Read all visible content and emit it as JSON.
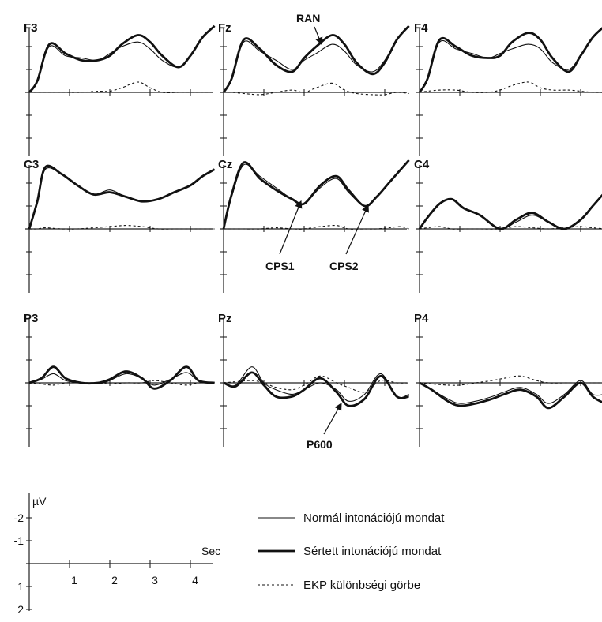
{
  "chart_data": {
    "type": "line",
    "x_unit": "Sec",
    "y_unit": "µV",
    "series_styles": [
      {
        "key": "normal",
        "style": "thin solid",
        "color": "#222222"
      },
      {
        "key": "violated",
        "style": "thick solid",
        "color": "#111111"
      },
      {
        "key": "difference",
        "style": "dashed",
        "color": "#222222"
      }
    ],
    "panels": [
      {
        "name": "F3",
        "x": [
          0,
          0.2,
          0.5,
          0.9,
          1.3,
          1.7,
          2.0,
          2.3,
          2.7,
          3.0,
          3.3,
          3.7,
          4.0,
          4.3,
          4.6
        ],
        "normal": [
          0,
          -0.5,
          -2.0,
          -1.6,
          -1.5,
          -1.4,
          -1.7,
          -2.0,
          -2.2,
          -1.9,
          -1.4,
          -1.1,
          -1.6,
          -2.4,
          -2.9
        ],
        "violated": [
          0,
          -0.5,
          -2.1,
          -1.7,
          -1.4,
          -1.4,
          -1.6,
          -2.1,
          -2.5,
          -2.2,
          -1.6,
          -1.1,
          -1.6,
          -2.4,
          -2.9
        ],
        "difference": [
          0,
          0,
          0,
          0,
          0,
          -0.05,
          -0.05,
          -0.2,
          -0.45,
          -0.2,
          0,
          0,
          0,
          0,
          0
        ]
      },
      {
        "name": "Fz",
        "x": [
          0,
          0.2,
          0.5,
          0.9,
          1.3,
          1.7,
          2.0,
          2.3,
          2.7,
          3.0,
          3.3,
          3.7,
          4.0,
          4.3,
          4.6
        ],
        "normal": [
          0,
          -0.6,
          -2.2,
          -1.8,
          -1.4,
          -1.0,
          -1.4,
          -1.7,
          -2.1,
          -1.8,
          -1.2,
          -0.9,
          -1.4,
          -2.3,
          -2.9
        ],
        "violated": [
          0,
          -0.6,
          -2.3,
          -1.9,
          -1.2,
          -0.9,
          -1.5,
          -2.0,
          -2.5,
          -2.1,
          -1.3,
          -0.8,
          -1.3,
          -2.3,
          -2.9
        ],
        "difference": [
          0,
          0,
          0.05,
          0.1,
          0,
          -0.1,
          0,
          -0.2,
          -0.4,
          -0.1,
          0.05,
          0.1,
          0.1,
          0,
          0.05
        ]
      },
      {
        "name": "F4",
        "x": [
          0,
          0.2,
          0.5,
          0.9,
          1.3,
          1.7,
          2.0,
          2.3,
          2.7,
          3.0,
          3.3,
          3.7,
          4.0,
          4.3,
          4.6
        ],
        "normal": [
          0,
          -0.6,
          -2.2,
          -1.9,
          -1.7,
          -1.5,
          -1.7,
          -1.9,
          -2.1,
          -1.9,
          -1.3,
          -1.0,
          -1.6,
          -2.4,
          -2.9
        ],
        "violated": [
          0,
          -0.6,
          -2.3,
          -2.0,
          -1.6,
          -1.5,
          -1.6,
          -2.2,
          -2.6,
          -2.3,
          -1.5,
          -0.9,
          -1.6,
          -2.4,
          -2.9
        ],
        "difference": [
          0,
          -0.05,
          -0.1,
          -0.1,
          0,
          0,
          -0.1,
          -0.3,
          -0.45,
          -0.2,
          -0.1,
          -0.1,
          -0.05,
          0,
          0
        ]
      },
      {
        "name": "C3",
        "x": [
          0,
          0.2,
          0.4,
          0.8,
          1.2,
          1.6,
          2.0,
          2.4,
          2.8,
          3.2,
          3.6,
          4.0,
          4.3,
          4.6
        ],
        "normal": [
          0,
          -1.2,
          -2.6,
          -2.4,
          -1.9,
          -1.5,
          -1.7,
          -1.4,
          -1.2,
          -1.3,
          -1.6,
          -1.9,
          -2.3,
          -2.6
        ],
        "violated": [
          0,
          -1.2,
          -2.7,
          -2.4,
          -1.9,
          -1.5,
          -1.6,
          -1.4,
          -1.2,
          -1.3,
          -1.6,
          -1.9,
          -2.3,
          -2.6
        ],
        "difference": [
          0,
          0,
          -0.05,
          0,
          0,
          -0.05,
          -0.1,
          -0.15,
          -0.1,
          0,
          0,
          0,
          0,
          0
        ]
      },
      {
        "name": "Cz",
        "x": [
          0,
          0.2,
          0.5,
          0.9,
          1.3,
          1.7,
          2.0,
          2.4,
          2.8,
          3.1,
          3.5,
          3.8,
          4.1,
          4.4,
          4.6
        ],
        "normal": [
          0,
          -1.4,
          -2.8,
          -2.3,
          -1.8,
          -1.3,
          -1.1,
          -1.8,
          -2.2,
          -1.6,
          -1.0,
          -1.4,
          -2.0,
          -2.6,
          -3.0
        ],
        "violated": [
          0,
          -1.5,
          -2.9,
          -2.2,
          -1.7,
          -1.3,
          -1.1,
          -1.9,
          -2.3,
          -1.7,
          -1.0,
          -1.4,
          -2.0,
          -2.6,
          -3.0
        ],
        "difference": [
          0,
          0,
          0,
          0,
          -0.05,
          0,
          0,
          -0.1,
          -0.15,
          0,
          0,
          0,
          -0.05,
          -0.1,
          0
        ]
      },
      {
        "name": "C4",
        "x": [
          0,
          0.2,
          0.5,
          0.8,
          1.1,
          1.5,
          2.0,
          2.4,
          2.8,
          3.2,
          3.6,
          4.0,
          4.3,
          4.6
        ],
        "normal": [
          0,
          -0.5,
          -1.1,
          -1.3,
          -0.9,
          -0.6,
          0.0,
          -0.3,
          -0.6,
          -0.3,
          0.0,
          -0.4,
          -1.0,
          -1.6
        ],
        "violated": [
          0,
          -0.5,
          -1.1,
          -1.3,
          -0.9,
          -0.6,
          0.0,
          -0.4,
          -0.7,
          -0.3,
          0.0,
          -0.4,
          -1.0,
          -1.6
        ],
        "difference": [
          0,
          -0.05,
          -0.1,
          0,
          0,
          0,
          0,
          -0.1,
          -0.05,
          0,
          -0.05,
          -0.1,
          -0.05,
          0
        ]
      },
      {
        "name": "P3",
        "x": [
          0,
          0.3,
          0.6,
          0.9,
          1.3,
          1.7,
          2.0,
          2.4,
          2.8,
          3.1,
          3.5,
          3.9,
          4.2,
          4.6
        ],
        "normal": [
          0,
          -0.15,
          -0.4,
          -0.1,
          0,
          0.05,
          -0.1,
          -0.4,
          -0.2,
          0.1,
          -0.15,
          -0.45,
          -0.1,
          0
        ],
        "violated": [
          0,
          -0.2,
          -0.7,
          -0.2,
          0,
          0,
          -0.15,
          -0.5,
          -0.2,
          0.25,
          -0.1,
          -0.7,
          -0.1,
          0
        ],
        "difference": [
          0,
          0.05,
          0.1,
          0,
          0,
          0,
          0.05,
          0,
          0,
          -0.1,
          0,
          0.1,
          0,
          0
        ]
      },
      {
        "name": "Pz",
        "x": [
          0,
          0.3,
          0.7,
          1.0,
          1.3,
          1.7,
          2.0,
          2.4,
          2.8,
          3.1,
          3.5,
          3.9,
          4.3,
          4.6
        ],
        "normal": [
          0,
          0.1,
          -0.7,
          0,
          0.3,
          0.5,
          0.3,
          0,
          0.3,
          0.8,
          0.5,
          -0.4,
          0.6,
          0.5
        ],
        "violated": [
          0,
          0.15,
          -0.45,
          0.1,
          0.6,
          0.6,
          0.3,
          -0.2,
          0.4,
          1.0,
          0.7,
          -0.3,
          0.6,
          0.6
        ],
        "difference": [
          0,
          -0.05,
          -0.1,
          0,
          0.2,
          0.3,
          0.1,
          -0.3,
          0,
          0.2,
          0.4,
          -0.1,
          0,
          0
        ]
      },
      {
        "name": "P4",
        "x": [
          0,
          0.3,
          0.7,
          1.0,
          1.4,
          1.8,
          2.1,
          2.5,
          2.9,
          3.2,
          3.6,
          4.0,
          4.3,
          4.6
        ],
        "normal": [
          0,
          0.3,
          0.7,
          0.9,
          0.8,
          0.6,
          0.4,
          0.2,
          0.5,
          0.9,
          0.5,
          -0.1,
          0.5,
          0.5
        ],
        "violated": [
          0,
          0.3,
          0.8,
          1.0,
          0.9,
          0.7,
          0.5,
          0.3,
          0.6,
          1.1,
          0.6,
          0,
          0.6,
          0.9
        ],
        "difference": [
          0,
          0.05,
          0.1,
          0.1,
          0,
          -0.1,
          -0.2,
          -0.3,
          -0.1,
          0,
          0,
          0,
          0,
          0
        ]
      }
    ],
    "annotations": [
      {
        "label": "RAN",
        "panel": "Fz"
      },
      {
        "label": "CPS1",
        "panel": "Cz"
      },
      {
        "label": "CPS2",
        "panel": "Cz"
      },
      {
        "label": "P600",
        "panel": "Pz"
      }
    ],
    "scale_key": {
      "y_unit_label": "µV",
      "x_unit_label": "Sec",
      "y_ticks": [
        "-2",
        "-1",
        "1",
        "2"
      ],
      "x_ticks": [
        "1",
        "2",
        "3",
        "4"
      ]
    },
    "legend": [
      {
        "label": "Normál intonációjú mondat",
        "style": "thin"
      },
      {
        "label": "Sértett intonációjú mondat",
        "style": "thick"
      },
      {
        "label": "EKP különbségi görbe",
        "style": "dashed"
      }
    ]
  }
}
